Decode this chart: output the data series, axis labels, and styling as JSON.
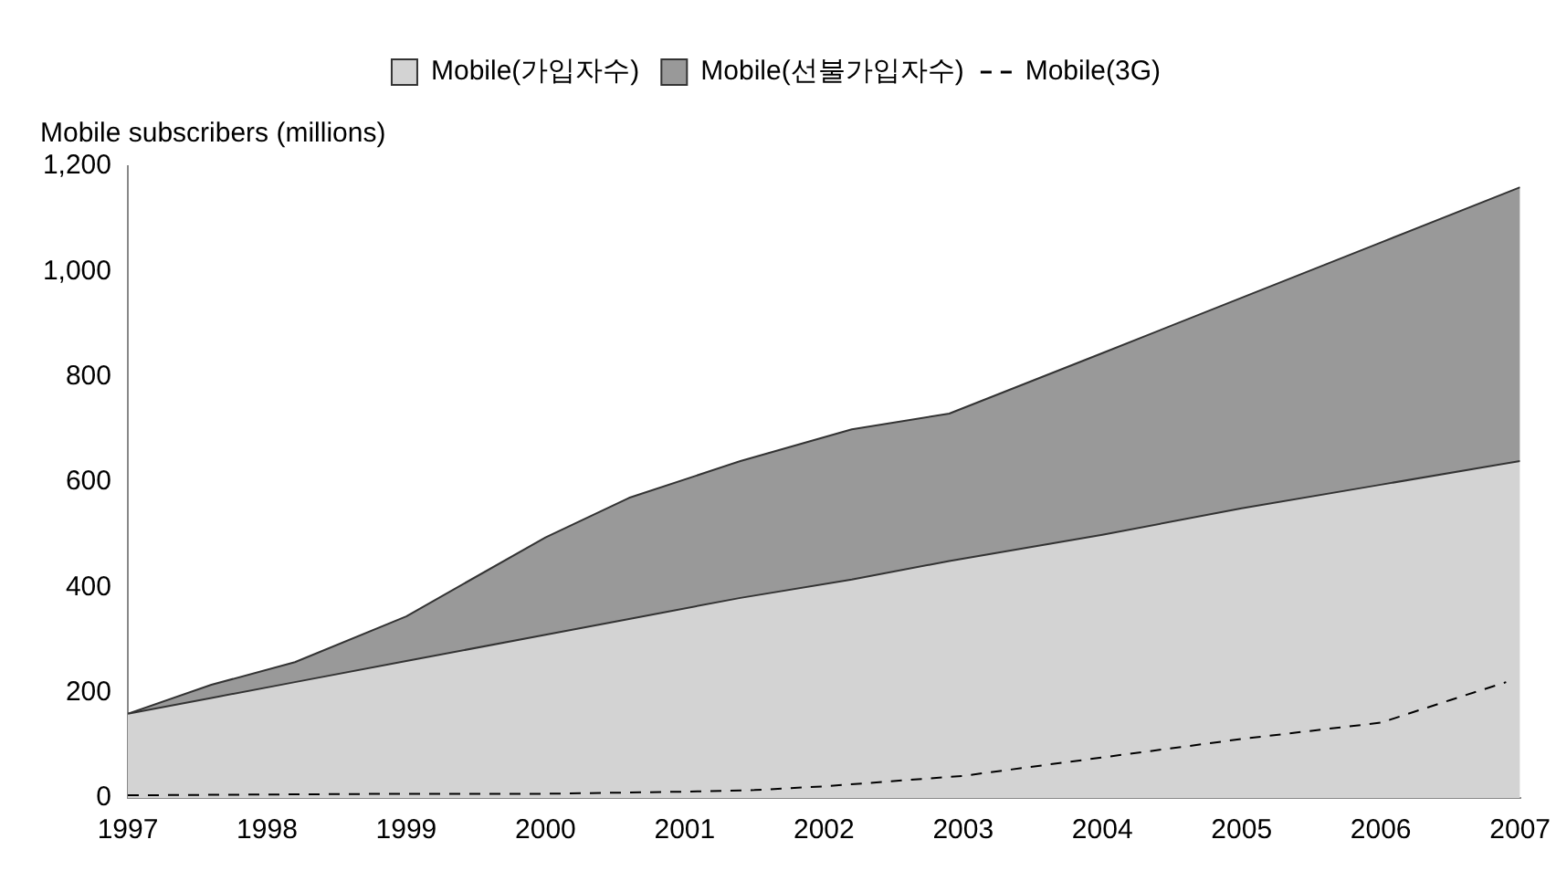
{
  "chart_data": {
    "type": "area",
    "ylabel": "Mobile subscribers (millions)",
    "stacked": true,
    "legend": "top",
    "grid": false,
    "marker": "none",
    "x": [
      1997,
      1997.6,
      1998.2,
      1999,
      2000,
      2000.6,
      2001.4,
      2002.2,
      2002.9,
      2004,
      2005,
      2006,
      2007
    ],
    "series": [
      {
        "name": "Mobile(가입자수)",
        "color": "#d3d3d3",
        "values": [
          160,
          190,
          220,
          260,
          310,
          340,
          380,
          415,
          450,
          500,
          550,
          595,
          640
        ]
      },
      {
        "name": "Mobile(선불가입자수)",
        "color": "#999999",
        "values": [
          0,
          25,
          38,
          85,
          185,
          230,
          260,
          285,
          280,
          345,
          400,
          460,
          520
        ]
      },
      {
        "name": "Mobile(3G)",
        "type": "line",
        "color": "#000000",
        "line_style": "dashed",
        "x": [
          1997,
          1999,
          2000,
          2001,
          2001.5,
          2002,
          2003,
          2004,
          2005,
          2006,
          2006.5,
          2006.9
        ],
        "values": [
          5,
          8,
          8,
          12,
          15,
          22,
          42,
          77,
          112,
          143,
          186,
          220
        ]
      }
    ],
    "xlim": [
      1997,
      2007
    ],
    "xticks": [
      1997,
      1998,
      1999,
      2000,
      2001,
      2002,
      2003,
      2004,
      2005,
      2006,
      2007
    ],
    "ylim": [
      0,
      1200
    ],
    "yticks": [
      0,
      200,
      400,
      600,
      800,
      {
        "value": 1000,
        "label": "1,000"
      },
      {
        "value": 1200,
        "label": "1,200"
      }
    ]
  }
}
